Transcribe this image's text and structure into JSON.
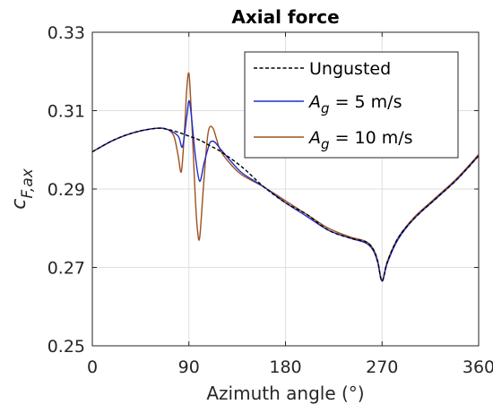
{
  "chart_data": {
    "type": "line",
    "title": "Axial force",
    "xlabel": "Azimuth angle (°)",
    "ylabel": "c_F,ax",
    "xlim": [
      0,
      360
    ],
    "ylim": [
      0.25,
      0.33
    ],
    "xticks": [
      0,
      90,
      180,
      270,
      360
    ],
    "yticks": [
      0.25,
      0.27,
      0.29,
      0.31,
      0.33
    ],
    "xtick_labels": [
      "0",
      "90",
      "180",
      "270",
      "360"
    ],
    "ytick_labels": [
      "0.25",
      "0.27",
      "0.29",
      "0.31",
      "0.33"
    ],
    "grid": true,
    "legend_position": "top-right",
    "series": [
      {
        "name": "Ungusted",
        "style": "dashed",
        "color": "#000000",
        "x": [
          0,
          20,
          40,
          60,
          70,
          80,
          90,
          100,
          110,
          120,
          140,
          160,
          180,
          200,
          220,
          240,
          255,
          262,
          266,
          270,
          275,
          285,
          300,
          320,
          340,
          360
        ],
        "y": [
          0.2995,
          0.3025,
          0.3045,
          0.3055,
          0.3052,
          0.3045,
          0.3035,
          0.3025,
          0.301,
          0.2995,
          0.2955,
          0.2905,
          0.2865,
          0.2835,
          0.2795,
          0.2775,
          0.2765,
          0.2745,
          0.2715,
          0.2665,
          0.2715,
          0.2775,
          0.2825,
          0.2875,
          0.2925,
          0.2985
        ]
      },
      {
        "name": "A_g = 5 m/s",
        "style": "solid",
        "color": "#1f2ec8",
        "x": [
          0,
          20,
          40,
          60,
          70,
          80,
          84,
          88,
          90,
          92,
          96,
          100,
          104,
          108,
          110,
          114,
          120,
          130,
          140,
          160,
          180,
          200,
          220,
          240,
          255,
          262,
          266,
          270,
          275,
          285,
          300,
          320,
          340,
          360
        ],
        "y": [
          0.2995,
          0.3025,
          0.3045,
          0.3055,
          0.3052,
          0.3035,
          0.3008,
          0.3085,
          0.3125,
          0.3095,
          0.2985,
          0.292,
          0.2965,
          0.3005,
          0.302,
          0.302,
          0.3,
          0.2968,
          0.294,
          0.2905,
          0.2865,
          0.283,
          0.2795,
          0.2775,
          0.2762,
          0.2742,
          0.2712,
          0.2665,
          0.2712,
          0.2772,
          0.2825,
          0.2875,
          0.2925,
          0.2985
        ]
      },
      {
        "name": "A_g = 10 m/s",
        "style": "solid",
        "color": "#a0501e",
        "x": [
          0,
          20,
          40,
          60,
          70,
          76,
          80,
          83,
          86,
          88,
          90,
          92,
          94,
          96,
          98,
          100,
          103,
          106,
          108,
          110,
          113,
          116,
          120,
          130,
          140,
          160,
          180,
          200,
          220,
          240,
          255,
          262,
          266,
          270,
          275,
          285,
          300,
          320,
          340,
          360
        ],
        "y": [
          0.2995,
          0.3025,
          0.3045,
          0.3055,
          0.3052,
          0.3035,
          0.2985,
          0.2945,
          0.3055,
          0.3155,
          0.3195,
          0.311,
          0.2995,
          0.2875,
          0.2795,
          0.2775,
          0.2885,
          0.2995,
          0.3045,
          0.306,
          0.3052,
          0.3025,
          0.2995,
          0.296,
          0.2935,
          0.2905,
          0.287,
          0.2835,
          0.28,
          0.2778,
          0.2766,
          0.2746,
          0.2716,
          0.2668,
          0.2716,
          0.2776,
          0.2828,
          0.2878,
          0.2928,
          0.2988
        ]
      }
    ]
  }
}
